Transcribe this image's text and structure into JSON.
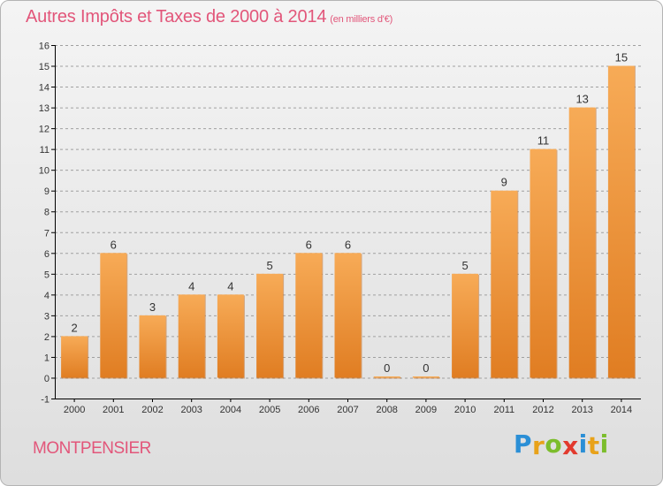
{
  "title": "Autres Impôts et Taxes de 2000 à 2014",
  "subtitle": "(en milliers d'€)",
  "location": "MONTPENSIER",
  "brand": {
    "letters": [
      "P",
      "r",
      "o",
      "x",
      "i",
      "t",
      "i"
    ],
    "colors": [
      "#2b8fd6",
      "#e8a21a",
      "#7cbd2c",
      "#e23a2e",
      "#2b8fd6",
      "#e8a21a",
      "#7cbd2c"
    ]
  },
  "colors": {
    "bar_light": "#f7ab57",
    "bar_dark": "#e07d22",
    "bar_shadow": "#bd6114",
    "axis": "#000000",
    "grid": "#a0a0a0"
  },
  "chart_data": {
    "type": "bar",
    "categories": [
      "2000",
      "2001",
      "2002",
      "2003",
      "2004",
      "2005",
      "2006",
      "2007",
      "2008",
      "2009",
      "2010",
      "2011",
      "2012",
      "2013",
      "2014"
    ],
    "values": [
      2,
      6,
      3,
      4,
      4,
      5,
      6,
      6,
      0,
      0,
      5,
      9,
      11,
      13,
      15
    ],
    "data_labels": [
      "2",
      "6",
      "3",
      "4",
      "4",
      "5",
      "6",
      "6",
      "0",
      "0",
      "5",
      "9",
      "11",
      "13",
      "15"
    ],
    "title": "Autres Impôts et Taxes de 2000 à 2014",
    "subtitle": "(en milliers d'€)",
    "xlabel": "",
    "ylabel": "",
    "ylim": [
      -1,
      16
    ],
    "yticks": [
      -1,
      0,
      1,
      2,
      3,
      4,
      5,
      6,
      7,
      8,
      9,
      10,
      11,
      12,
      13,
      14,
      15,
      16
    ],
    "ytick_labels": [
      "-1",
      "0",
      "1",
      "2",
      "3",
      "4",
      "5",
      "6",
      "7",
      "8",
      "9",
      "10",
      "11",
      "12",
      "13",
      "14",
      "15",
      "16"
    ],
    "grid": "horizontal-dashed",
    "legend": "none"
  }
}
